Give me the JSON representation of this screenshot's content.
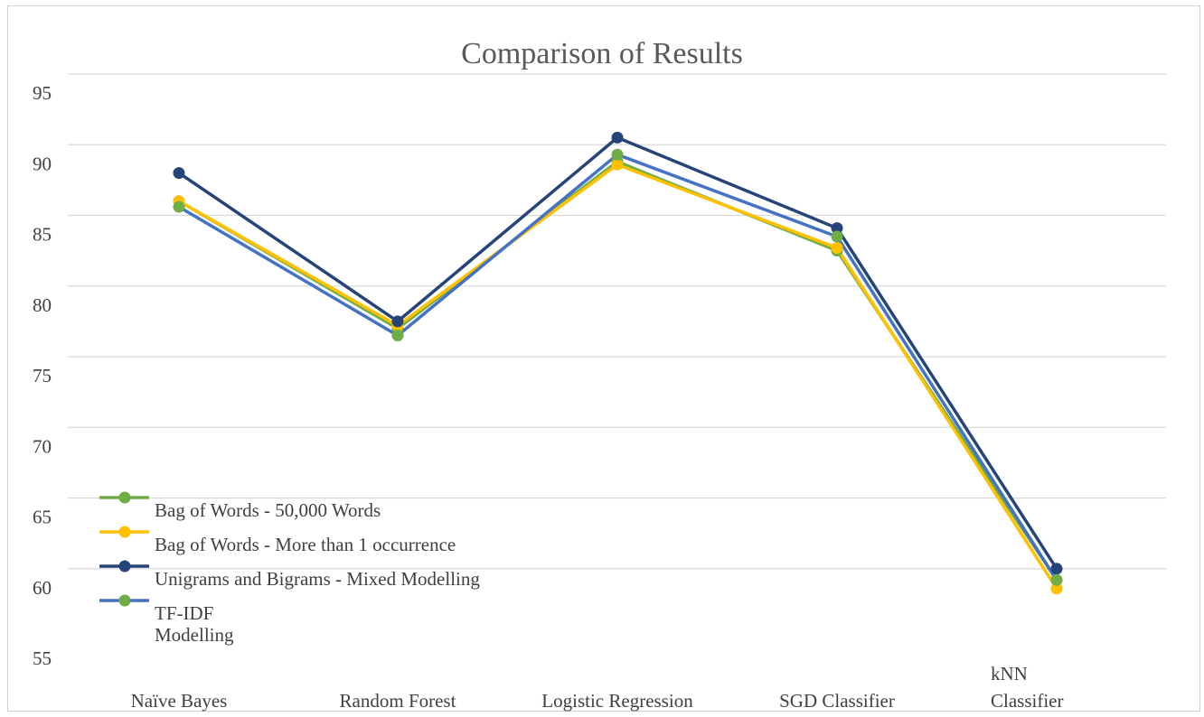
{
  "chart_data": {
    "type": "line",
    "title": "Comparison of Results",
    "categories": [
      "Naïve Bayes",
      "Random Forest",
      "Logistic Regression",
      "SGD Classifier",
      "kNN Classifier"
    ],
    "ylim": [
      55,
      95
    ],
    "yticks": [
      95,
      90,
      85,
      80,
      75,
      70,
      65,
      60,
      55
    ],
    "grid": true,
    "legend_position": "bottom-left",
    "series": [
      {
        "name": "Bag of Words - 50,000 Words",
        "color": "#70ad47",
        "values": [
          86.0,
          77.0,
          88.8,
          82.5,
          59.2
        ]
      },
      {
        "name": "Bag of Words - More than 1 occurrence",
        "color": "#ffc000",
        "values": [
          86.0,
          77.2,
          88.6,
          82.7,
          58.6
        ]
      },
      {
        "name": "Unigrams and Bigrams - Mixed Modelling",
        "color": "#264478",
        "values": [
          88.0,
          77.5,
          90.5,
          84.1,
          60.0
        ]
      },
      {
        "name": "TF-IDF Modelling",
        "color": "#4472c4",
        "marker_color": "#70ad47",
        "values": [
          85.6,
          76.5,
          89.3,
          83.5,
          59.2
        ]
      }
    ]
  }
}
